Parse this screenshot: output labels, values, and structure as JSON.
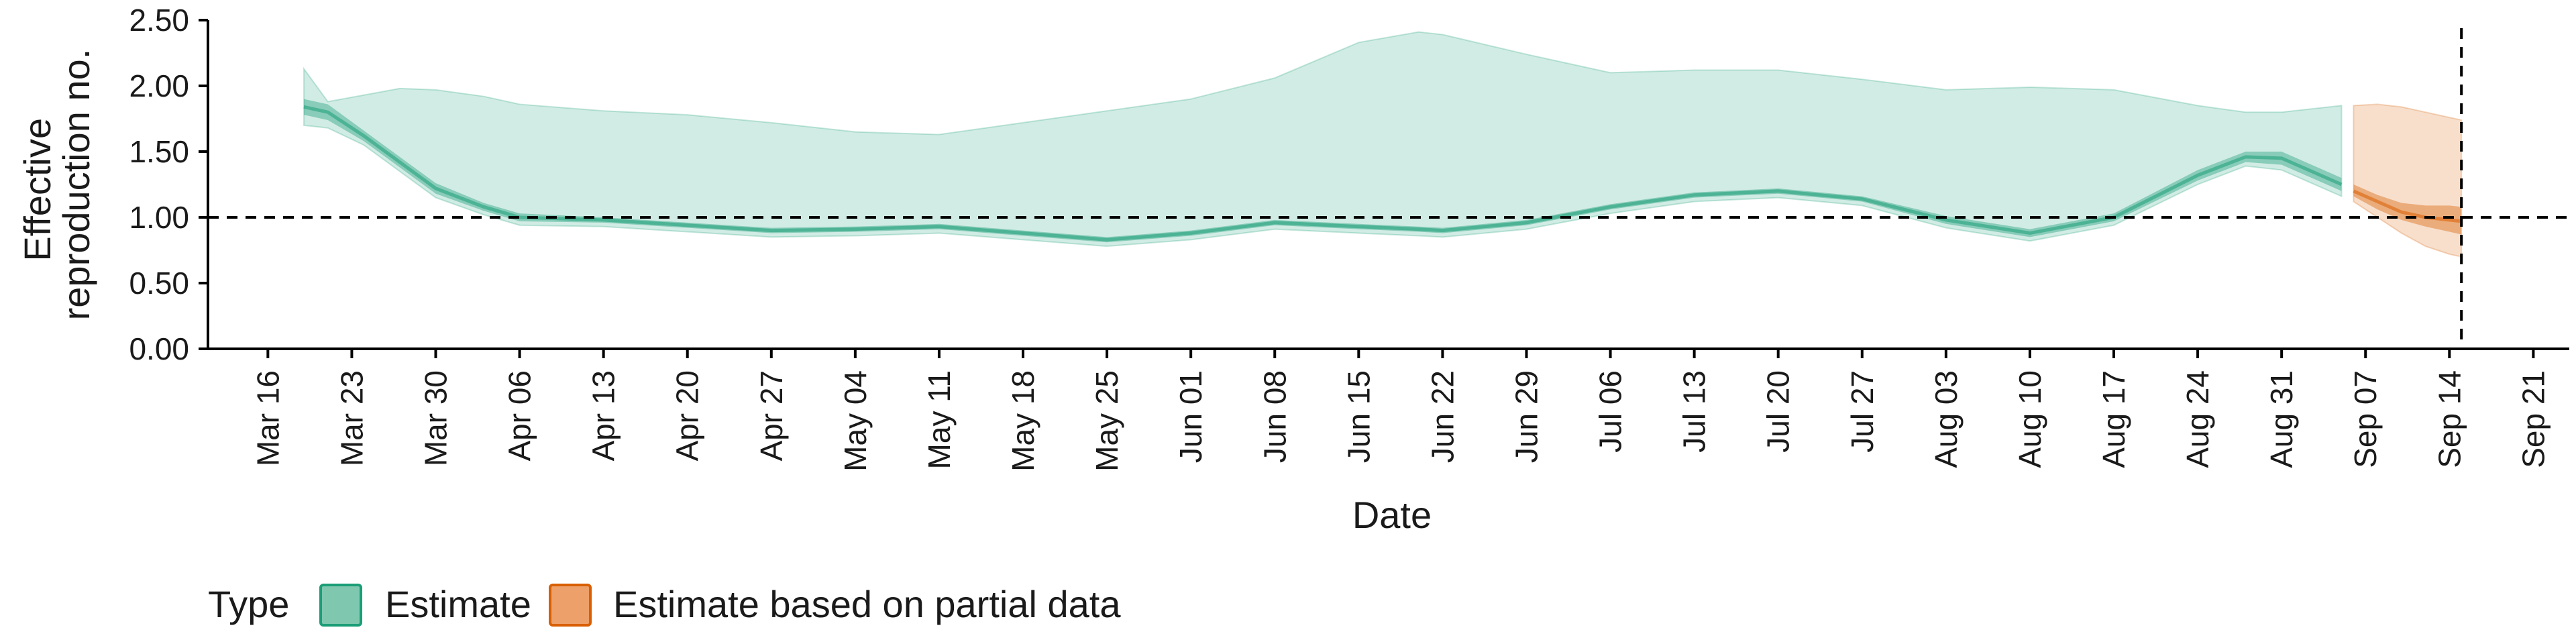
{
  "chart_data": {
    "type": "area",
    "title": "",
    "xlabel": "Date",
    "ylabel": [
      "Effective",
      "reproduction no."
    ],
    "ylim": [
      0,
      2.5
    ],
    "yticks": [
      0.0,
      0.5,
      1.0,
      1.5,
      2.0,
      2.5
    ],
    "ytick_labels": [
      "0.00",
      "0.50",
      "1.00",
      "1.50",
      "2.00",
      "2.50"
    ],
    "xlim": [
      "2020-03-11",
      "2020-09-24"
    ],
    "xtick_dates": [
      "2020-03-16",
      "2020-03-23",
      "2020-03-30",
      "2020-04-06",
      "2020-04-13",
      "2020-04-20",
      "2020-04-27",
      "2020-05-04",
      "2020-05-11",
      "2020-05-18",
      "2020-05-25",
      "2020-06-01",
      "2020-06-08",
      "2020-06-15",
      "2020-06-22",
      "2020-06-29",
      "2020-07-06",
      "2020-07-13",
      "2020-07-20",
      "2020-07-27",
      "2020-08-03",
      "2020-08-10",
      "2020-08-17",
      "2020-08-24",
      "2020-08-31",
      "2020-09-07",
      "2020-09-14",
      "2020-09-21"
    ],
    "xtick_labels": [
      "Mar 16",
      "Mar 23",
      "Mar 30",
      "Apr 06",
      "Apr 13",
      "Apr 20",
      "Apr 27",
      "May 04",
      "May 11",
      "May 18",
      "May 25",
      "Jun 01",
      "Jun 08",
      "Jun 15",
      "Jun 22",
      "Jun 29",
      "Jul 06",
      "Jul 13",
      "Jul 20",
      "Jul 27",
      "Aug 03",
      "Aug 10",
      "Aug 17",
      "Aug 24",
      "Aug 31",
      "Sep 07",
      "Sep 14",
      "Sep 21"
    ],
    "reference_line_y": 1.0,
    "reference_line_x": "2020-09-15",
    "legend": {
      "title": "Type",
      "position": "bottom-left",
      "entries": [
        {
          "label": "Estimate",
          "fill": "#7FC7AE",
          "stroke": "#1B9E77"
        },
        {
          "label": "Estimate based on partial data",
          "fill": "#EDA06A",
          "stroke": "#D95F02"
        }
      ]
    },
    "series": [
      {
        "name": "Estimate",
        "color": "#1B9E77",
        "x": [
          "2020-03-19",
          "2020-03-21",
          "2020-03-24",
          "2020-03-27",
          "2020-03-30",
          "2020-04-03",
          "2020-04-06",
          "2020-04-13",
          "2020-04-20",
          "2020-04-27",
          "2020-05-04",
          "2020-05-11",
          "2020-05-18",
          "2020-05-25",
          "2020-06-01",
          "2020-06-08",
          "2020-06-15",
          "2020-06-20",
          "2020-06-22",
          "2020-06-29",
          "2020-07-06",
          "2020-07-13",
          "2020-07-20",
          "2020-07-27",
          "2020-08-03",
          "2020-08-10",
          "2020-08-17",
          "2020-08-24",
          "2020-08-28",
          "2020-08-31",
          "2020-09-05"
        ],
        "median": [
          1.84,
          1.8,
          1.62,
          1.42,
          1.22,
          1.08,
          1.0,
          0.98,
          0.94,
          0.9,
          0.91,
          0.93,
          0.88,
          0.83,
          0.88,
          0.96,
          0.93,
          0.91,
          0.9,
          0.96,
          1.08,
          1.17,
          1.2,
          1.14,
          0.98,
          0.88,
          1.0,
          1.32,
          1.46,
          1.45,
          1.25
        ],
        "lower_50": [
          1.78,
          1.74,
          1.58,
          1.38,
          1.18,
          1.05,
          0.97,
          0.96,
          0.92,
          0.88,
          0.89,
          0.91,
          0.86,
          0.81,
          0.86,
          0.94,
          0.91,
          0.89,
          0.88,
          0.94,
          1.06,
          1.15,
          1.18,
          1.12,
          0.95,
          0.85,
          0.97,
          1.28,
          1.42,
          1.4,
          1.2
        ],
        "upper_50": [
          1.9,
          1.86,
          1.66,
          1.46,
          1.26,
          1.11,
          1.03,
          1.0,
          0.96,
          0.92,
          0.93,
          0.95,
          0.9,
          0.85,
          0.9,
          0.98,
          0.95,
          0.93,
          0.92,
          0.98,
          1.1,
          1.19,
          1.22,
          1.16,
          1.01,
          0.91,
          1.03,
          1.36,
          1.5,
          1.5,
          1.3
        ],
        "lower_90": [
          1.7,
          1.68,
          1.55,
          1.35,
          1.15,
          1.02,
          0.94,
          0.93,
          0.89,
          0.85,
          0.86,
          0.88,
          0.83,
          0.78,
          0.83,
          0.91,
          0.88,
          0.86,
          0.85,
          0.91,
          1.03,
          1.12,
          1.15,
          1.09,
          0.92,
          0.82,
          0.94,
          1.25,
          1.39,
          1.36,
          1.16
        ],
        "upper_90": [
          2.13,
          1.88,
          1.93,
          1.98,
          1.97,
          1.92,
          1.86,
          1.81,
          1.78,
          1.72,
          1.65,
          1.63,
          1.72,
          1.81,
          1.9,
          2.06,
          2.33,
          2.41,
          2.39,
          2.24,
          2.1,
          2.12,
          2.12,
          2.05,
          1.97,
          1.99,
          1.97,
          1.85,
          1.8,
          1.8,
          1.85
        ]
      },
      {
        "name": "Estimate based on partial data",
        "color": "#D95F02",
        "x": [
          "2020-09-06",
          "2020-09-08",
          "2020-09-10",
          "2020-09-12",
          "2020-09-14",
          "2020-09-15"
        ],
        "median": [
          1.2,
          1.12,
          1.04,
          1.0,
          0.98,
          0.97
        ],
        "lower_50": [
          1.16,
          1.06,
          0.98,
          0.93,
          0.89,
          0.87
        ],
        "upper_50": [
          1.25,
          1.17,
          1.11,
          1.09,
          1.09,
          1.08
        ],
        "lower_90": [
          1.12,
          1.0,
          0.88,
          0.78,
          0.72,
          0.7
        ],
        "upper_90": [
          1.85,
          1.86,
          1.84,
          1.8,
          1.76,
          1.74
        ]
      }
    ]
  }
}
